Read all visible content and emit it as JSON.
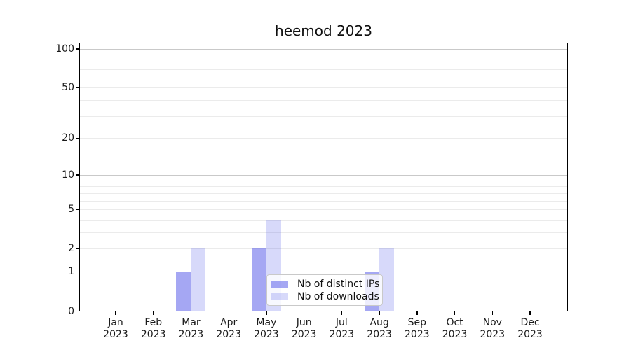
{
  "chart_data": {
    "type": "bar",
    "title": "heemod 2023",
    "year": "2023",
    "months": [
      "Jan",
      "Feb",
      "Mar",
      "Apr",
      "May",
      "Jun",
      "Jul",
      "Aug",
      "Sep",
      "Oct",
      "Nov",
      "Dec"
    ],
    "categories": [
      "Jan 2023",
      "Feb 2023",
      "Mar 2023",
      "Apr 2023",
      "May 2023",
      "Jun 2023",
      "Jul 2023",
      "Aug 2023",
      "Sep 2023",
      "Oct 2023",
      "Nov 2023",
      "Dec 2023"
    ],
    "series": [
      {
        "name": "Nb of distinct IPs",
        "color": "rgba(75,80,232,0.5)",
        "values": [
          0,
          0,
          1,
          0,
          2,
          0,
          0,
          1,
          0,
          0,
          0,
          0
        ]
      },
      {
        "name": "Nb of downloads",
        "color": "rgba(75,80,232,0.22)",
        "values": [
          0,
          0,
          2,
          0,
          4,
          0,
          0,
          2,
          0,
          0,
          0,
          0
        ]
      }
    ],
    "yscale": "log1p",
    "ylim": [
      0,
      112
    ],
    "ytick_values": [
      0,
      1,
      2,
      5,
      10,
      20,
      50,
      100
    ],
    "grid": {
      "major_values": [
        1,
        10,
        100
      ],
      "minor_values": [
        2,
        3,
        4,
        5,
        6,
        7,
        8,
        9,
        20,
        30,
        40,
        50,
        60,
        70,
        80,
        90
      ],
      "major_color": "#c9c9c9",
      "minor_color": "#ebebeb"
    },
    "legend_position": "lower center-right inside plot",
    "axis_color": "#000000",
    "text_color": "#1a1a1a",
    "background": "#ffffff"
  }
}
